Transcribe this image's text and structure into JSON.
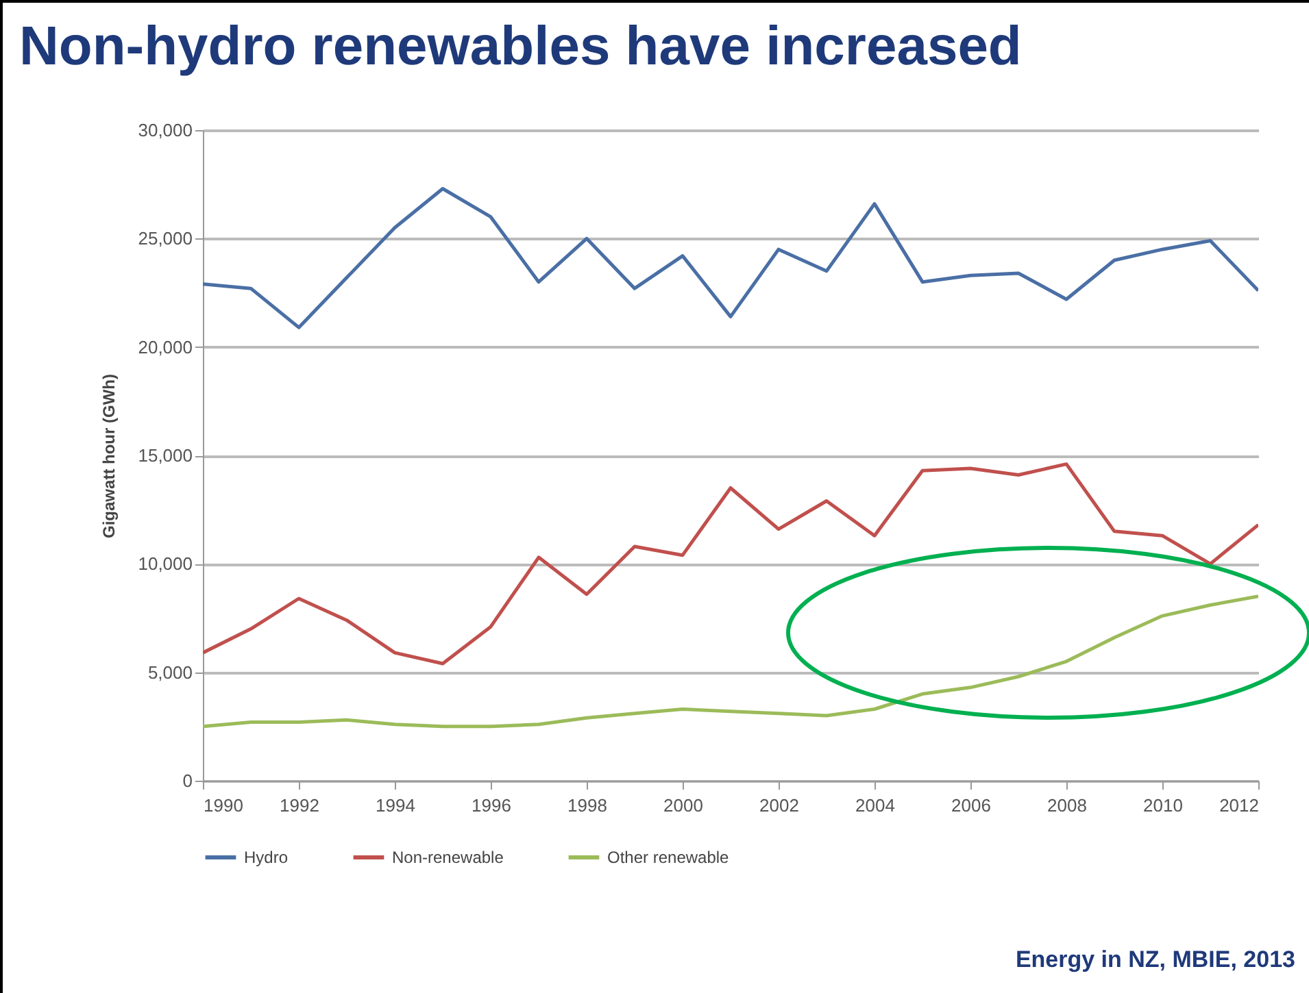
{
  "chart_data": {
    "type": "line",
    "title": "Non-hydro renewables have increased",
    "ylabel": "Gigawatt hour (GWh)",
    "x": [
      1990,
      1991,
      1992,
      1993,
      1994,
      1995,
      1996,
      1997,
      1998,
      1999,
      2000,
      2001,
      2002,
      2003,
      2004,
      2005,
      2006,
      2007,
      2008,
      2009,
      2010,
      2011,
      2012
    ],
    "series": [
      {
        "name": "Hydro",
        "color": "#4a6fa5",
        "values": [
          22900,
          22700,
          20900,
          23200,
          25500,
          27300,
          26000,
          23000,
          25000,
          22700,
          24200,
          21400,
          24500,
          23500,
          26600,
          23000,
          23300,
          23400,
          22200,
          24000,
          24500,
          24900,
          22600
        ]
      },
      {
        "name": "Non-renewable",
        "color": "#c0504d",
        "values": [
          5900,
          7000,
          8400,
          7400,
          5900,
          5400,
          7100,
          10300,
          8600,
          10800,
          10400,
          13500,
          11600,
          12900,
          11300,
          14300,
          14400,
          14100,
          14600,
          11500,
          11300,
          10000,
          11800
        ]
      },
      {
        "name": "Other renewable",
        "color": "#9bbb59",
        "values": [
          2500,
          2700,
          2700,
          2800,
          2600,
          2500,
          2500,
          2600,
          2900,
          3100,
          3300,
          3200,
          3100,
          3000,
          3300,
          4000,
          4300,
          4800,
          5500,
          6600,
          7600,
          8100,
          8500
        ]
      }
    ],
    "xlim": [
      1990,
      2012
    ],
    "xticks": [
      1990,
      1992,
      1994,
      1996,
      1998,
      2000,
      2002,
      2004,
      2006,
      2008,
      2010,
      2012
    ],
    "ylim": [
      0,
      30000
    ],
    "yticks": [
      0,
      {
        "value": 5000,
        "label": "5,000"
      },
      {
        "value": 10000,
        "label": "10,000"
      },
      {
        "value": 15000,
        "label": "15,000"
      },
      {
        "value": 20000,
        "label": "20,000"
      },
      {
        "value": 25000,
        "label": "25,000"
      },
      {
        "value": 30000,
        "label": "30,000"
      }
    ],
    "grid": "y",
    "legend": "bottom",
    "line_style": "solid",
    "marker": "none",
    "annotations": [
      "Energy in NZ, MBIE, 2013"
    ]
  }
}
